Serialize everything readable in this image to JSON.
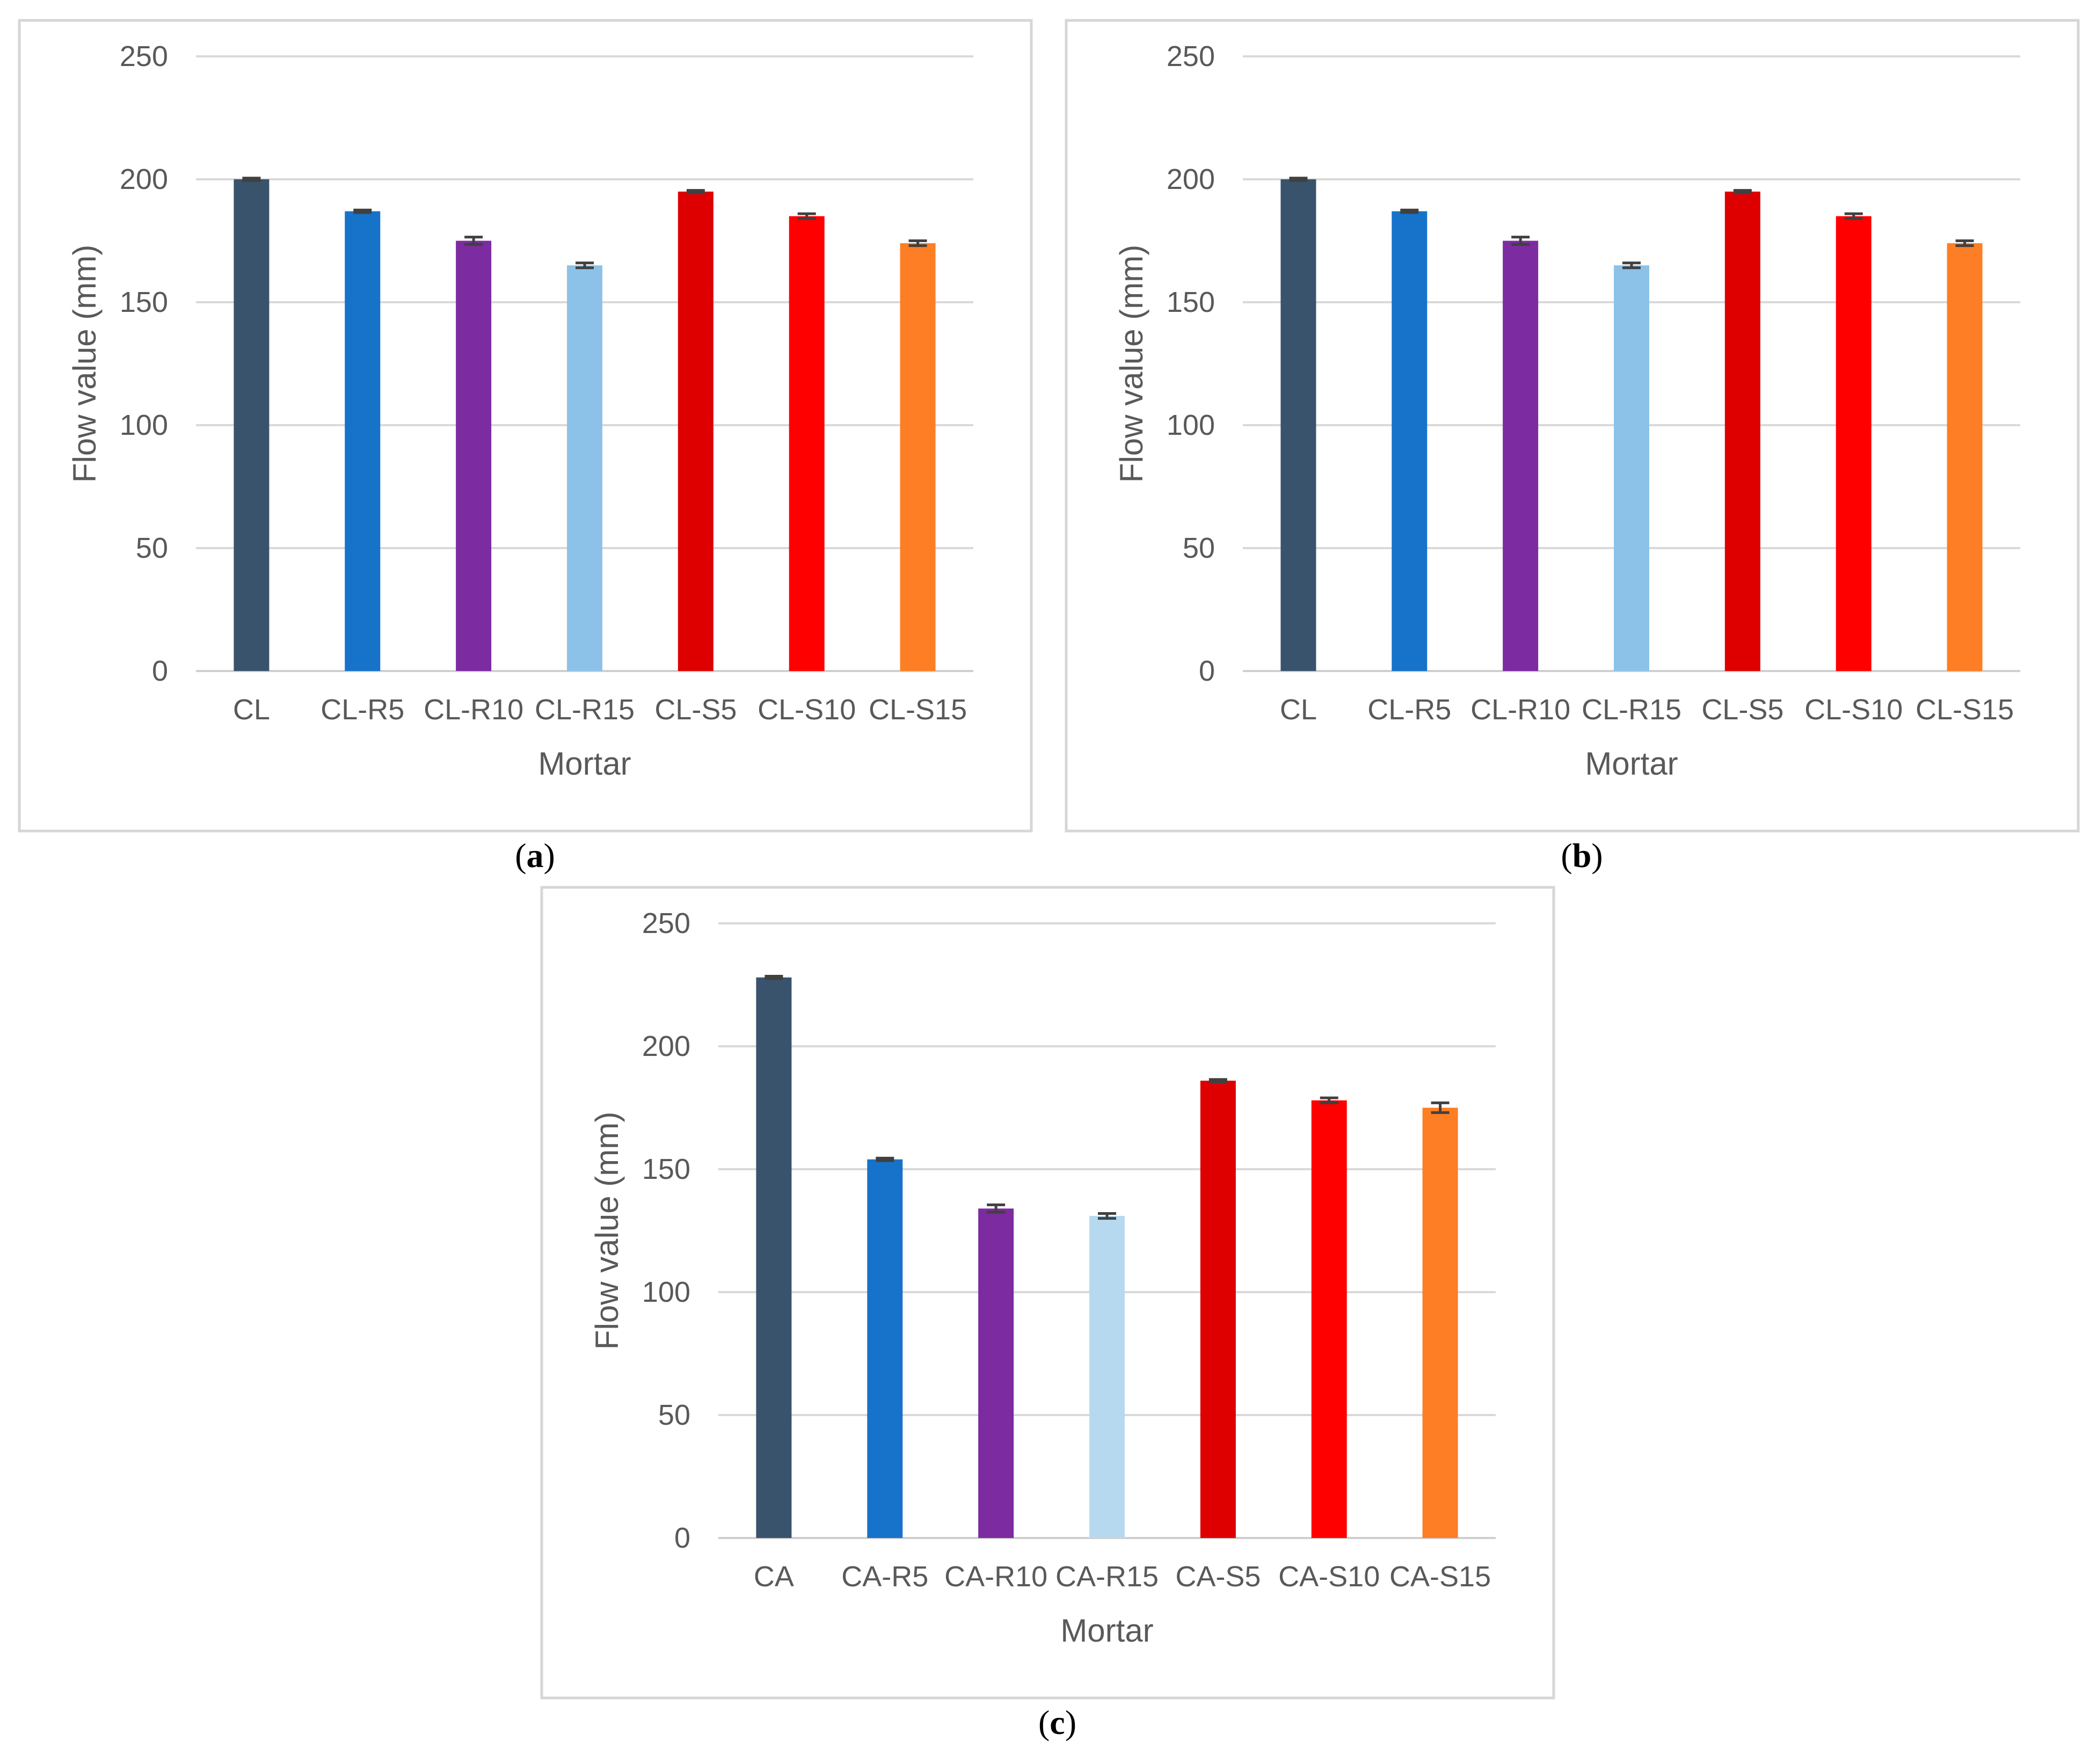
{
  "chart_data": [
    {
      "type": "bar",
      "panel_label": "a",
      "title": "",
      "xlabel": "Mortar",
      "ylabel": "Flow value (mm)",
      "ylim": [
        0,
        250
      ],
      "yticks": [
        0,
        50,
        100,
        150,
        200,
        250
      ],
      "grid": true,
      "categories": [
        "CL",
        "CL-R5",
        "CL-R10",
        "CL-R15",
        "CL-S5",
        "CL-S10",
        "CL-S15"
      ],
      "values": [
        200,
        187,
        175,
        165,
        195,
        185,
        174
      ],
      "errors": [
        0.5,
        0.5,
        1.5,
        1,
        0.5,
        1,
        1
      ],
      "colors": [
        "#3a536d",
        "#1772c9",
        "#7c2ba0",
        "#8dc2e8",
        "#de0000",
        "#ff0000",
        "#fd7e24"
      ]
    },
    {
      "type": "bar",
      "panel_label": "b",
      "title": "",
      "xlabel": "Mortar",
      "ylabel": "Flow value (mm)",
      "ylim": [
        0,
        250
      ],
      "yticks": [
        0,
        50,
        100,
        150,
        200,
        250
      ],
      "grid": true,
      "categories": [
        "CL",
        "CL-R5",
        "CL-R10",
        "CL-R15",
        "CL-S5",
        "CL-S10",
        "CL-S15"
      ],
      "values": [
        200,
        187,
        175,
        165,
        195,
        185,
        174
      ],
      "errors": [
        0.5,
        0.5,
        1.5,
        1,
        0.5,
        1,
        1
      ],
      "colors": [
        "#3a536d",
        "#1772c9",
        "#7c2ba0",
        "#8dc2e8",
        "#de0000",
        "#ff0000",
        "#fd7e24"
      ]
    },
    {
      "type": "bar",
      "panel_label": "c",
      "title": "",
      "xlabel": "Mortar",
      "ylabel": "Flow value (mm)",
      "ylim": [
        0,
        250
      ],
      "yticks": [
        0,
        50,
        100,
        150,
        200,
        250
      ],
      "grid": true,
      "categories": [
        "CA",
        "CA-R5",
        "CA-R10",
        "CA-R15",
        "CA-S5",
        "CA-S10",
        "CA-S15"
      ],
      "values": [
        228,
        154,
        134,
        131,
        186,
        178,
        175
      ],
      "errors": [
        0.5,
        0.5,
        1.5,
        1,
        0.5,
        1,
        2
      ],
      "colors": [
        "#3a536d",
        "#1772c9",
        "#7c2ba0",
        "#b7d9f0",
        "#de0000",
        "#ff0000",
        "#fd7e24"
      ]
    }
  ]
}
